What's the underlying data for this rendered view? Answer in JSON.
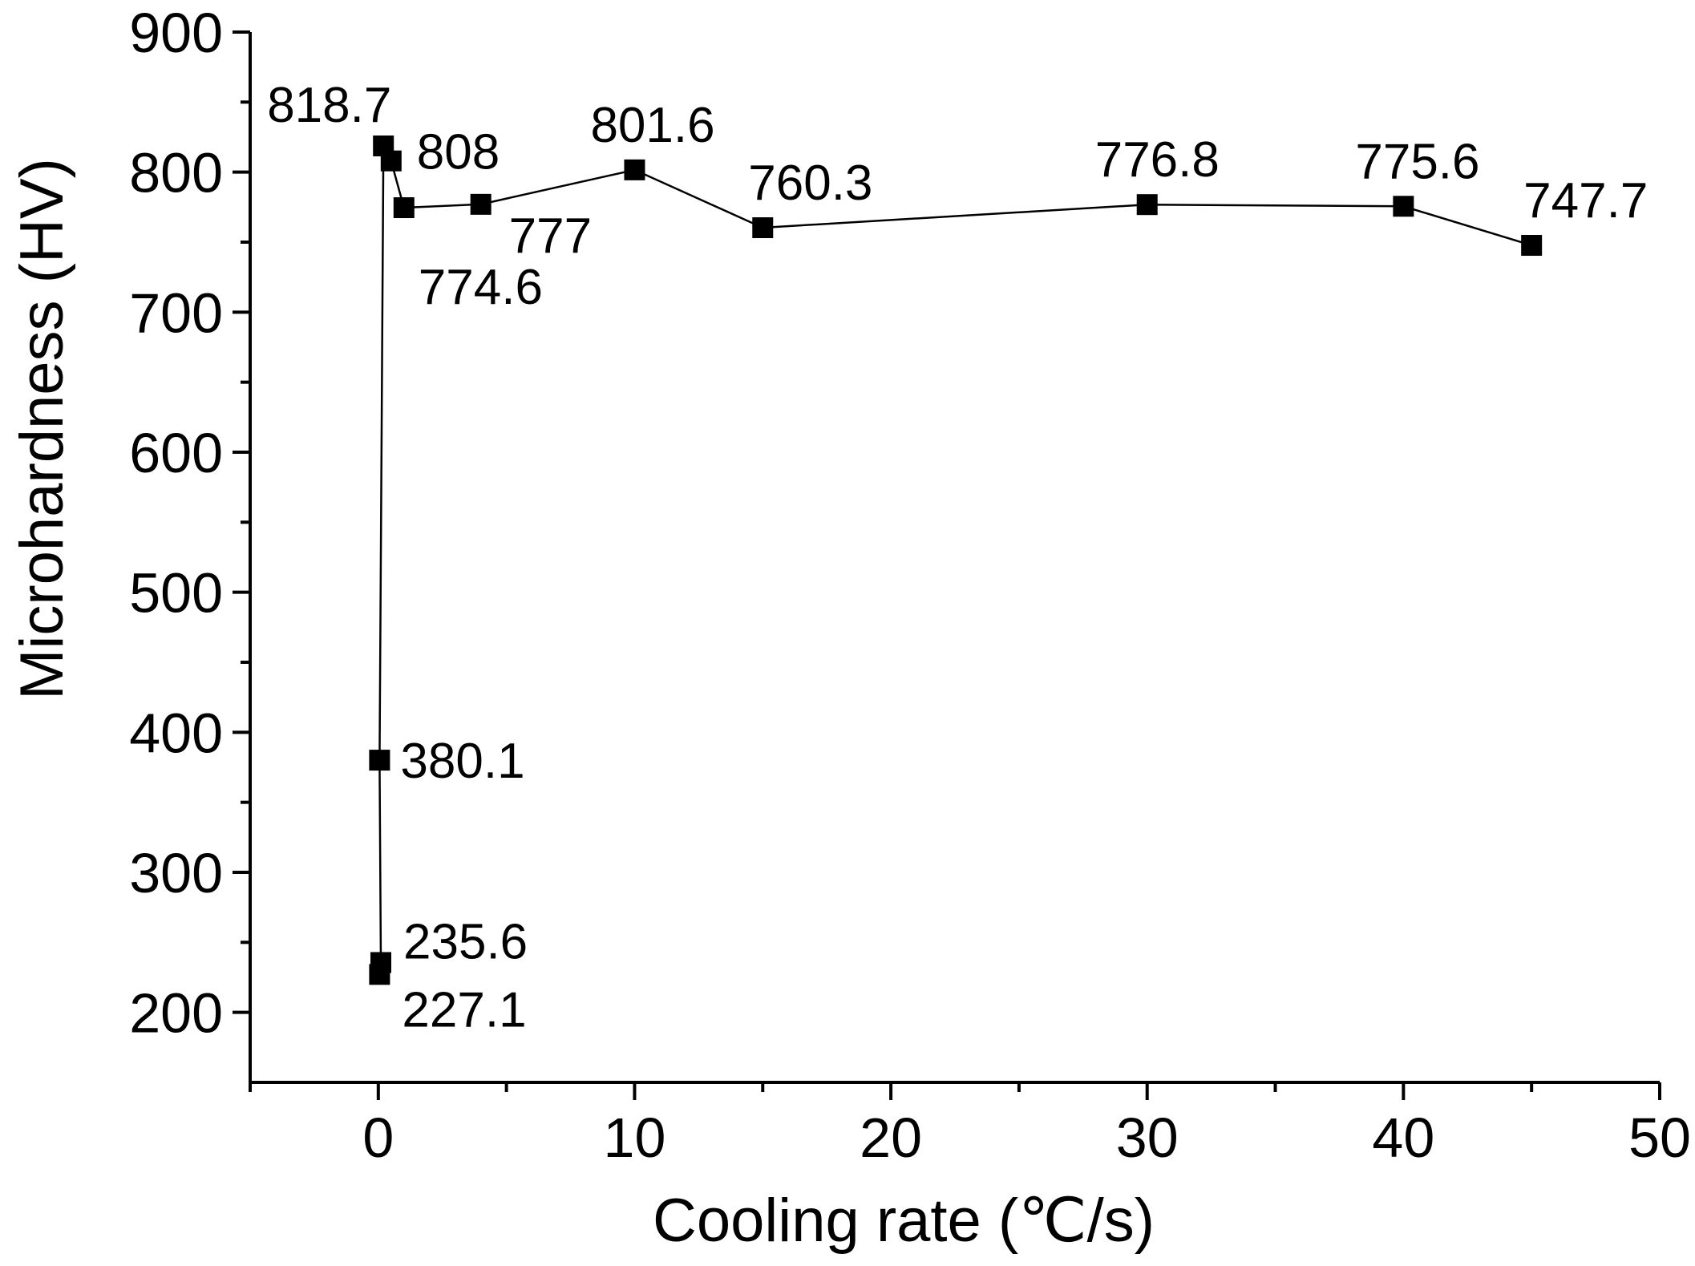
{
  "chart_data": {
    "type": "line",
    "title": "",
    "xlabel": "Cooling rate (℃/s)",
    "ylabel": "Microhardness (HV)",
    "xlim": [
      -5,
      50
    ],
    "ylim": [
      150,
      900
    ],
    "x_ticks": [
      0,
      10,
      20,
      30,
      40,
      50
    ],
    "x_tick_labels": [
      "0",
      "10",
      "20",
      "30",
      "40",
      "50"
    ],
    "y_ticks": [
      200,
      300,
      400,
      500,
      600,
      700,
      800,
      900
    ],
    "y_tick_labels": [
      "200",
      "300",
      "400",
      "500",
      "600",
      "700",
      "800",
      "900"
    ],
    "grid": false,
    "series": [
      {
        "name": "Microhardness",
        "x": [
          0.05,
          0.1,
          0.05,
          0.2,
          0.5,
          1,
          4,
          10,
          15,
          30,
          40,
          45
        ],
        "y": [
          227.1,
          235.6,
          380.1,
          818.7,
          808,
          774.6,
          777,
          801.6,
          760.3,
          776.8,
          775.6,
          747.7
        ],
        "labels": [
          "227.1",
          "235.6",
          "380.1",
          "818.7",
          "808",
          "774.6",
          "777",
          "801.6",
          "760.3",
          "776.8",
          "775.6",
          "747.7"
        ]
      }
    ]
  }
}
